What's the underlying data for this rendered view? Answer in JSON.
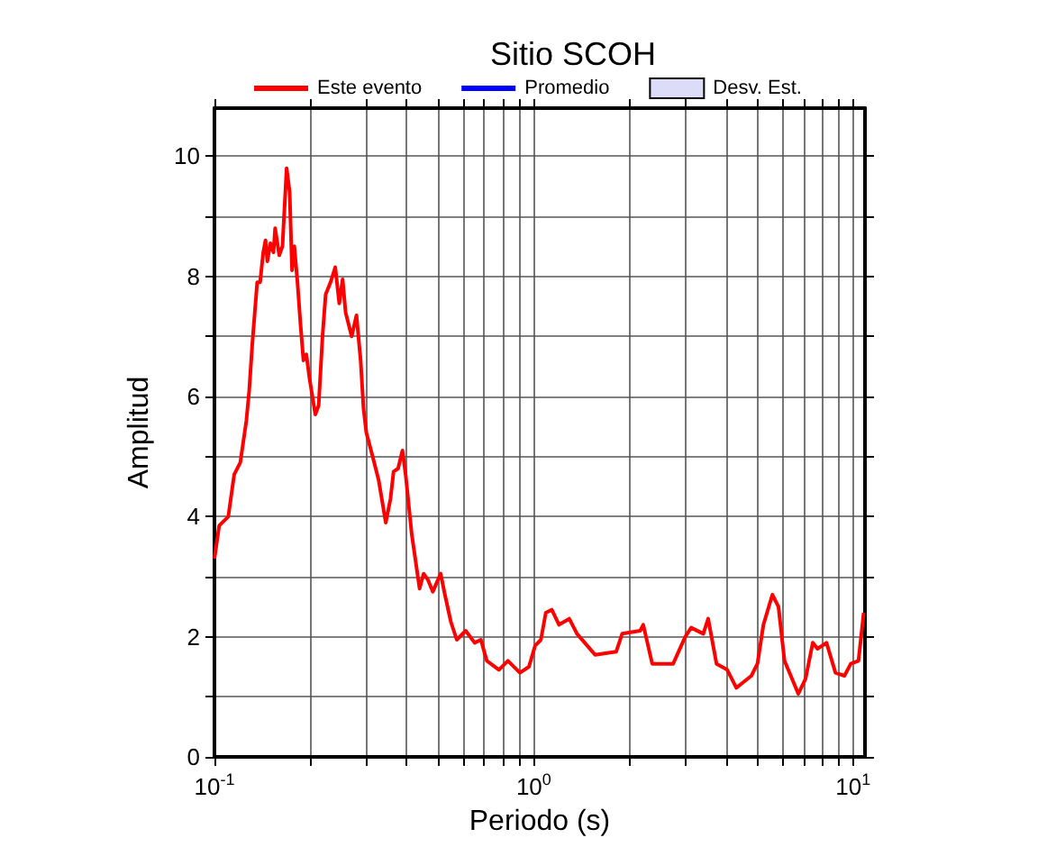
{
  "chart_data": {
    "type": "line",
    "title": "Sitio SCOH",
    "xlabel": "Periodo (s)",
    "ylabel": "Amplitud",
    "log": "x",
    "grid": true,
    "legend": "top",
    "marker": "none",
    "line_style": "solid",
    "xlim": [
      0.1,
      10.9
    ],
    "ylim": [
      0,
      10.8
    ],
    "xticks": [
      {
        "value": 0.1,
        "label": "10$^{-1}$"
      },
      {
        "value": 0.2,
        "label": null
      },
      {
        "value": 0.3,
        "label": null
      },
      {
        "value": 0.4,
        "label": null
      },
      {
        "value": 0.5,
        "label": null
      },
      {
        "value": 0.6,
        "label": null
      },
      {
        "value": 0.7,
        "label": null
      },
      {
        "value": 0.8,
        "label": null
      },
      {
        "value": 0.9,
        "label": null
      },
      {
        "value": 1,
        "label": "10$^{0}$"
      },
      {
        "value": 2,
        "label": null
      },
      {
        "value": 3,
        "label": null
      },
      {
        "value": 4,
        "label": null
      },
      {
        "value": 5,
        "label": null
      },
      {
        "value": 6,
        "label": null
      },
      {
        "value": 7,
        "label": null
      },
      {
        "value": 8,
        "label": null
      },
      {
        "value": 9,
        "label": null
      },
      {
        "value": 10,
        "label": "10$^{1}$"
      }
    ],
    "yticks": [
      0,
      {
        "value": 1,
        "label": null
      },
      2,
      {
        "value": 3,
        "label": null
      },
      4,
      {
        "value": 5,
        "label": null
      },
      6,
      {
        "value": 7,
        "label": null
      },
      8,
      {
        "value": 9,
        "label": null
      },
      10
    ],
    "series": [
      {
        "name": "Este evento",
        "color": "#ff0000",
        "x": [
          0.1,
          0.1035,
          0.1105,
          0.1153,
          0.1205,
          0.1259,
          0.1285,
          0.1315,
          0.1361,
          0.139,
          0.1422,
          0.1445,
          0.1465,
          0.1497,
          0.1531,
          0.1549,
          0.1596,
          0.1633,
          0.1683,
          0.172,
          0.175,
          0.1779,
          0.182,
          0.186,
          0.19,
          0.194,
          0.1985,
          0.207,
          0.212,
          0.218,
          0.223,
          0.231,
          0.239,
          0.246,
          0.252,
          0.2575,
          0.269,
          0.2785,
          0.287,
          0.293,
          0.299,
          0.313,
          0.327,
          0.344,
          0.356,
          0.364,
          0.376,
          0.388,
          0.397,
          0.415,
          0.439,
          0.452,
          0.466,
          0.483,
          0.511,
          0.527,
          0.55,
          0.574,
          0.612,
          0.653,
          0.683,
          0.713,
          0.778,
          0.83,
          0.905,
          0.966,
          1.01,
          1.053,
          1.091,
          1.139,
          1.2,
          1.292,
          1.366,
          1.556,
          1.812,
          1.892,
          2.155,
          2.203,
          2.35,
          2.733,
          2.983,
          3.112,
          3.397,
          3.518,
          3.736,
          4.036,
          4.31,
          4.805,
          5.02,
          5.24,
          5.59,
          5.84,
          6.1,
          6.74,
          7.1,
          7.48,
          7.74,
          8.26,
          8.81,
          9.4,
          9.84,
          10.4,
          10.8
        ],
        "values": [
          3.3,
          3.85,
          4.0,
          4.7,
          4.9,
          5.6,
          6.1,
          6.9,
          7.9,
          7.9,
          8.4,
          8.6,
          8.25,
          8.55,
          8.4,
          8.8,
          8.35,
          8.5,
          9.8,
          9.4,
          8.1,
          8.5,
          7.9,
          7.2,
          6.6,
          6.7,
          6.3,
          5.7,
          5.85,
          7.0,
          7.7,
          7.9,
          8.15,
          7.55,
          7.95,
          7.4,
          7.0,
          7.35,
          6.6,
          5.8,
          5.4,
          5.0,
          4.6,
          3.9,
          4.3,
          4.75,
          4.8,
          5.1,
          4.7,
          3.7,
          2.8,
          3.05,
          2.95,
          2.75,
          3.05,
          2.7,
          2.25,
          1.95,
          2.1,
          1.9,
          1.95,
          1.6,
          1.45,
          1.6,
          1.4,
          1.5,
          1.85,
          1.95,
          2.4,
          2.45,
          2.2,
          2.3,
          2.05,
          1.7,
          1.75,
          2.05,
          2.1,
          2.2,
          1.55,
          1.55,
          2.0,
          2.15,
          2.05,
          2.3,
          1.55,
          1.45,
          1.15,
          1.35,
          1.55,
          2.2,
          2.7,
          2.5,
          1.6,
          1.05,
          1.3,
          1.9,
          1.8,
          1.9,
          1.4,
          1.35,
          1.55,
          1.6,
          2.4
        ]
      },
      {
        "name": "Promedio",
        "color": "#0000ff"
      },
      {
        "name": "Desv. Est.",
        "type": "area",
        "color": "#dcdcf8"
      }
    ]
  }
}
